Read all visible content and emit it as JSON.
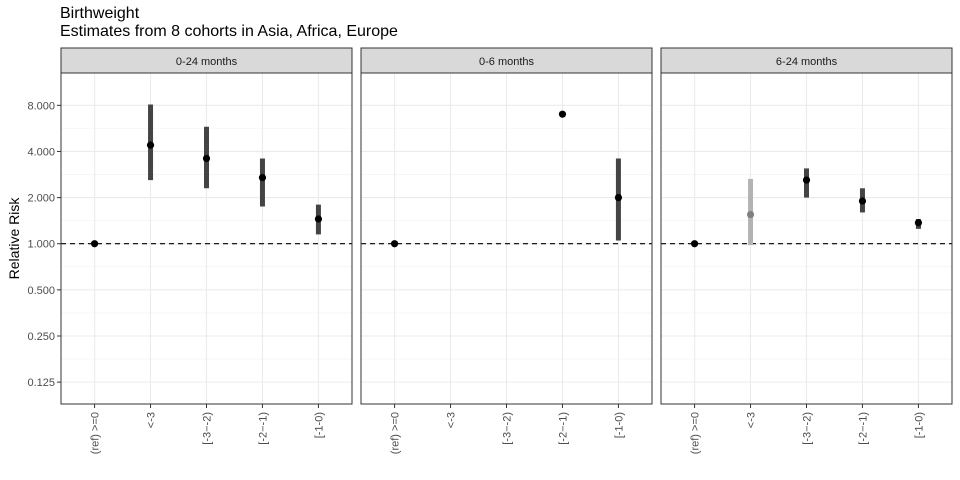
{
  "chart_data": {
    "type": "pointrange",
    "title": "Birthweight",
    "subtitle": "Estimates from 8 cohorts in Asia, Africa, Europe",
    "ylabel": "Relative Risk",
    "xlabel": "",
    "y_scale": "log2",
    "ylim": [
      0.09,
      13
    ],
    "y_ticks": [
      0.125,
      0.25,
      0.5,
      1,
      2,
      4,
      8
    ],
    "y_tick_labels": [
      "0.125",
      "0.250",
      "0.500",
      "1.000",
      "2.000",
      "4.000",
      "8.000"
    ],
    "reference_line": 1,
    "categories": [
      "(ref) >=0",
      "<-3",
      "[-3−-2)",
      "[-2−-1)",
      "[-1-0)"
    ],
    "panels": [
      {
        "label": "0-24 months",
        "points": [
          {
            "category": "(ref) >=0",
            "rr": 1.0,
            "lower": null,
            "upper": null,
            "faded": false
          },
          {
            "category": "<-3",
            "rr": 4.4,
            "lower": 2.6,
            "upper": 8.1,
            "faded": false
          },
          {
            "category": "[-3−-2)",
            "rr": 3.6,
            "lower": 2.3,
            "upper": 5.8,
            "faded": false
          },
          {
            "category": "[-2−-1)",
            "rr": 2.7,
            "lower": 1.75,
            "upper": 3.6,
            "faded": false
          },
          {
            "category": "[-1-0)",
            "rr": 1.45,
            "lower": 1.15,
            "upper": 1.8,
            "faded": false
          }
        ]
      },
      {
        "label": "0-6 months",
        "points": [
          {
            "category": "(ref) >=0",
            "rr": 1.0,
            "lower": null,
            "upper": null,
            "faded": false
          },
          {
            "category": "[-2−-1)",
            "rr": 7.0,
            "lower": null,
            "upper": null,
            "faded": false
          },
          {
            "category": "[-1-0)",
            "rr": 2.0,
            "lower": 1.05,
            "upper": 3.6,
            "faded": false
          }
        ]
      },
      {
        "label": "6-24 months",
        "points": [
          {
            "category": "(ref) >=0",
            "rr": 1.0,
            "lower": null,
            "upper": null,
            "faded": false
          },
          {
            "category": "<-3",
            "rr": 1.55,
            "lower": 0.98,
            "upper": 2.65,
            "faded": true
          },
          {
            "category": "[-3−-2)",
            "rr": 2.6,
            "lower": 2.0,
            "upper": 3.1,
            "faded": false
          },
          {
            "category": "[-2−-1)",
            "rr": 1.9,
            "lower": 1.6,
            "upper": 2.3,
            "faded": false
          },
          {
            "category": "[-1-0)",
            "rr": 1.37,
            "lower": 1.25,
            "upper": 1.45,
            "faded": false
          }
        ]
      }
    ]
  }
}
